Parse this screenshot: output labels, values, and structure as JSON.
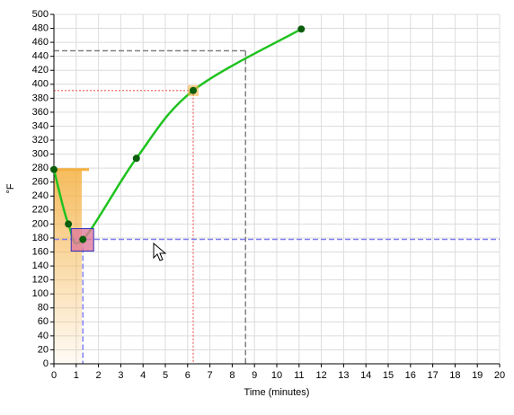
{
  "chart_data": {
    "type": "line",
    "x_label": "Time (minutes)",
    "y_label": "°F",
    "x": [
      0,
      0.65,
      1.3,
      3.7,
      6.25,
      11.1
    ],
    "series": [
      {
        "color": "#1fc21f",
        "point_color": "#0b5e0b",
        "values": [
          278,
          200,
          178,
          294,
          391,
          479
        ]
      }
    ],
    "xlim": [
      0,
      20
    ],
    "ylim": [
      0,
      500
    ],
    "xticks": [
      0,
      1,
      2,
      3,
      4,
      5,
      6,
      7,
      8,
      9,
      10,
      11,
      12,
      13,
      14,
      15,
      16,
      17,
      18,
      19,
      20
    ],
    "yticks": [
      0,
      20,
      40,
      60,
      80,
      100,
      120,
      140,
      160,
      180,
      200,
      220,
      240,
      260,
      280,
      300,
      320,
      340,
      360,
      380,
      400,
      420,
      440,
      460,
      480,
      500
    ],
    "grid": true,
    "smooth": true,
    "crosshairs": [
      {
        "x": 8.6,
        "y": 448,
        "color": "#808080",
        "dash": "6,3",
        "span": "point"
      },
      {
        "x": 6.25,
        "y": 391,
        "color": "#f08080",
        "dash": "2,2",
        "span": "point"
      },
      {
        "x": 1.3,
        "y": 178,
        "color": "#8080f0",
        "dash": "6,3",
        "span": "full"
      }
    ],
    "shaded_region": {
      "x": [
        0,
        1.25
      ],
      "y": 278,
      "color": "#f5b041"
    },
    "selected_point": 2,
    "hover_point": 4
  }
}
